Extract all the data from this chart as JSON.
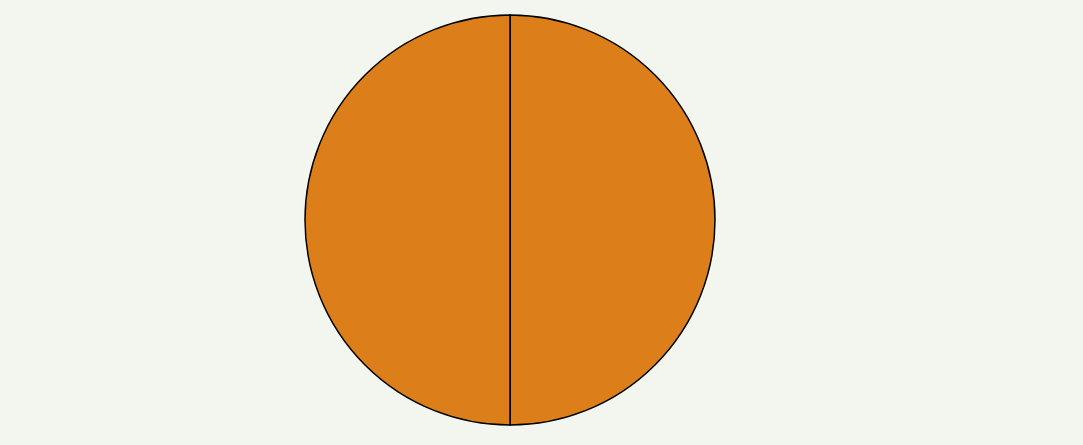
{
  "chart_data": {
    "type": "pie",
    "categories": [
      null,
      null
    ],
    "values": [
      50,
      50
    ],
    "colors": [
      "#dc7f1a",
      "#dc7f1a"
    ]
  }
}
